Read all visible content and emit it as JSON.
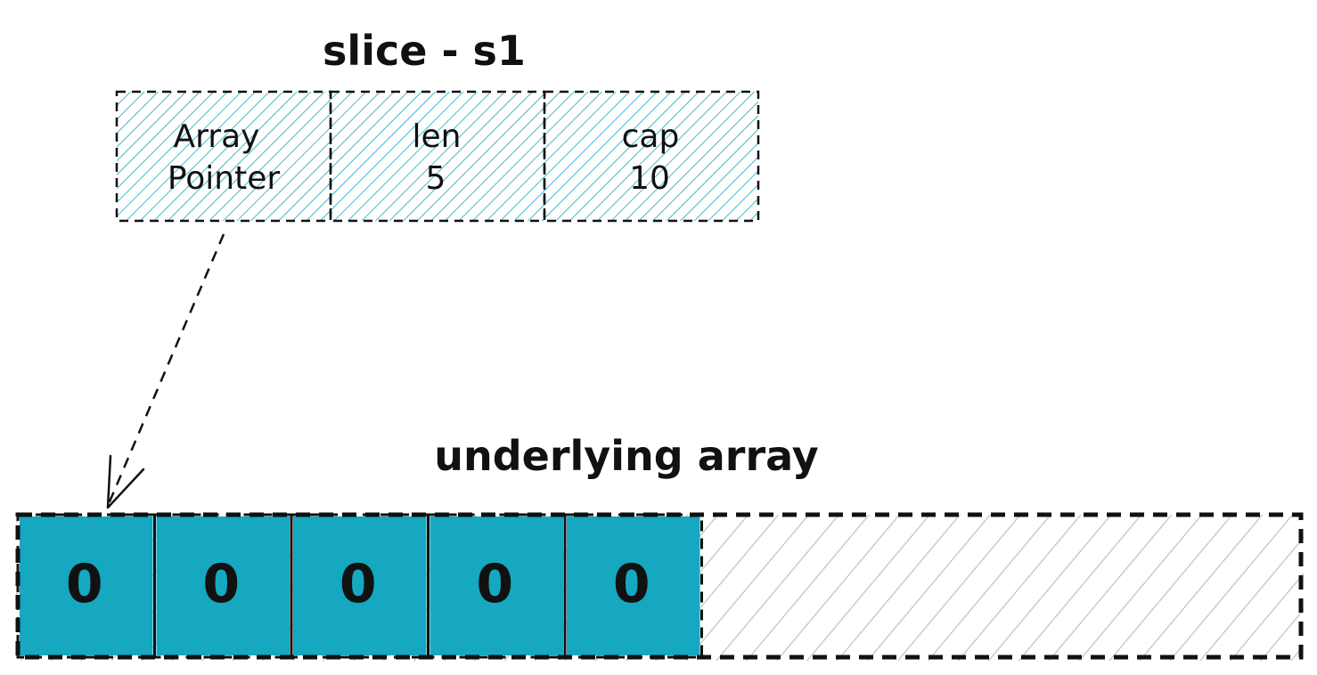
{
  "slice": {
    "title": "slice - s1",
    "fields": [
      {
        "line1": "Array",
        "line2": "Pointer"
      },
      {
        "line1": "len",
        "line2": "5"
      },
      {
        "line1": "cap",
        "line2": "10"
      }
    ],
    "hatch_color": "#15a8c0"
  },
  "array": {
    "title": "underlying array",
    "filled_values": [
      "0",
      "0",
      "0",
      "0",
      "0"
    ],
    "capacity": 10,
    "fill_color": "#15a8c0",
    "empty_hatch_color": "#c8ccd2"
  }
}
